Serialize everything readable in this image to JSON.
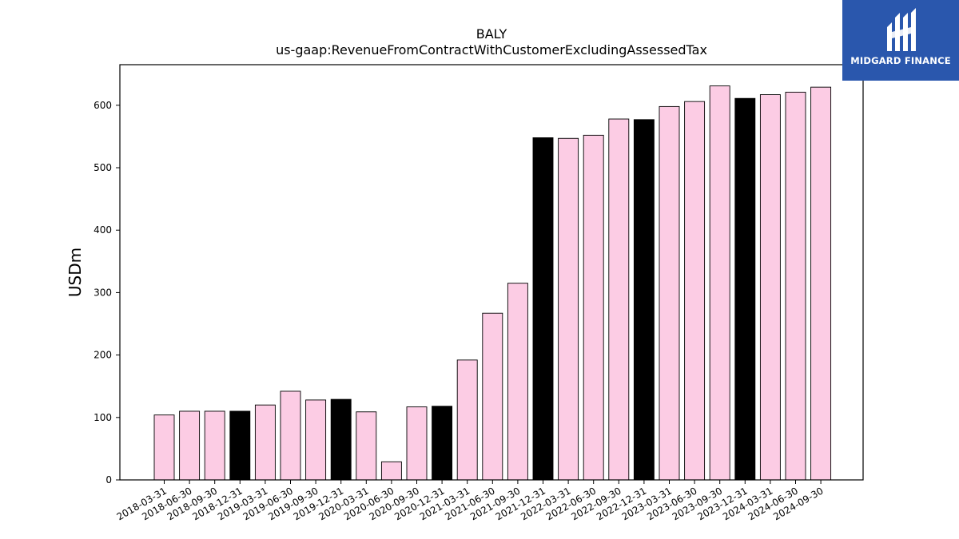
{
  "brand": {
    "name": "MIDGARD FINANCE",
    "logo_icon": "midgard-logo-icon",
    "logo_bg": "#2a57ad"
  },
  "colors": {
    "bar_default": "#fccce4",
    "bar_highlight": "#000000",
    "bar_edge": "#000000",
    "axis": "#000000"
  },
  "chart_data": {
    "type": "bar",
    "title": "BALY",
    "subtitle": "us-gaap:RevenueFromContractWithCustomerExcludingAssessedTax",
    "xlabel": "",
    "ylabel": "USDm",
    "ylim": [
      0,
      665
    ],
    "yticks": [
      0,
      100,
      200,
      300,
      400,
      500,
      600
    ],
    "grid": false,
    "legend": "none",
    "categories": [
      "2018-03-31",
      "2018-06-30",
      "2018-09-30",
      "2018-12-31",
      "2019-03-31",
      "2019-06-30",
      "2019-09-30",
      "2019-12-31",
      "2020-03-31",
      "2020-06-30",
      "2020-09-30",
      "2020-12-31",
      "2021-03-31",
      "2021-06-30",
      "2021-09-30",
      "2021-12-31",
      "2022-03-31",
      "2022-06-30",
      "2022-09-30",
      "2022-12-31",
      "2023-03-31",
      "2023-06-30",
      "2023-09-30",
      "2023-12-31",
      "2024-03-31",
      "2024-06-30",
      "2024-09-30"
    ],
    "values": [
      104,
      110,
      110,
      110,
      120,
      142,
      128,
      129,
      109,
      29,
      117,
      118,
      192,
      267,
      315,
      548,
      547,
      552,
      578,
      577,
      598,
      606,
      631,
      611,
      617,
      621,
      629
    ],
    "highlighted": [
      "2018-12-31",
      "2019-12-31",
      "2020-12-31",
      "2021-12-31",
      "2022-12-31",
      "2023-12-31"
    ]
  }
}
